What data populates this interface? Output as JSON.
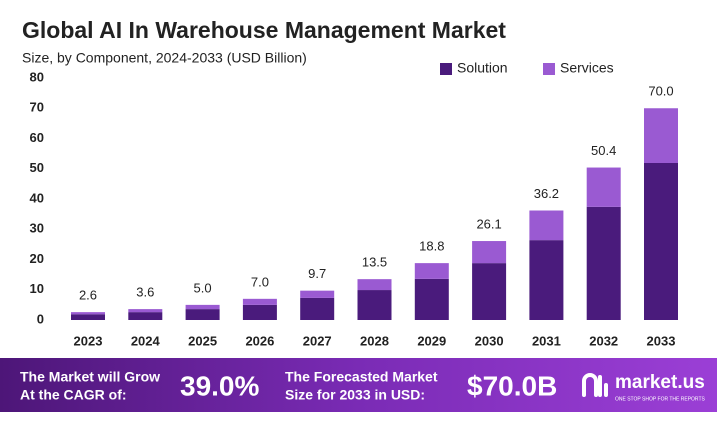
{
  "chart_data": {
    "type": "stacked_bar",
    "title": "Global AI In Warehouse Management Market",
    "subtitle": "Size, by Component, 2024-2033 (USD Billion)",
    "categories": [
      "2023",
      "2024",
      "2025",
      "2026",
      "2027",
      "2028",
      "2029",
      "2030",
      "2031",
      "2032",
      "2033"
    ],
    "series": [
      {
        "name": "Solution",
        "color": "#4a1b7c",
        "values": [
          1.9,
          2.6,
          3.6,
          5.0,
          7.3,
          9.9,
          13.6,
          18.8,
          26.4,
          37.4,
          51.9
        ]
      },
      {
        "name": "Services",
        "color": "#9a5ad2",
        "values": [
          0.7,
          1.0,
          1.4,
          2.0,
          2.4,
          3.6,
          5.2,
          7.3,
          9.8,
          13.0,
          18.1
        ]
      }
    ],
    "totals": [
      2.6,
      3.6,
      5.0,
      7.0,
      9.7,
      13.5,
      18.8,
      26.1,
      36.2,
      50.4,
      70.0
    ],
    "total_labels": [
      "2.6",
      "3.6",
      "5.0",
      "7.0",
      "9.7",
      "13.5",
      "18.8",
      "26.1",
      "36.2",
      "50.4",
      "70.0"
    ],
    "ylim": [
      0,
      80
    ],
    "yticks": [
      0,
      10,
      20,
      30,
      40,
      50,
      60,
      70,
      80
    ],
    "legend": "top-right"
  },
  "footer": {
    "cagr_text": [
      "The Market will Grow",
      "At the CAGR of:"
    ],
    "cagr_value": "39.0%",
    "forecast_text": [
      "The Forecasted Market",
      "Size for 2033 in USD:"
    ],
    "forecast_value": "$70.0B",
    "brand": "market.us",
    "tagline": "ONE STOP SHOP FOR THE REPORTS"
  }
}
